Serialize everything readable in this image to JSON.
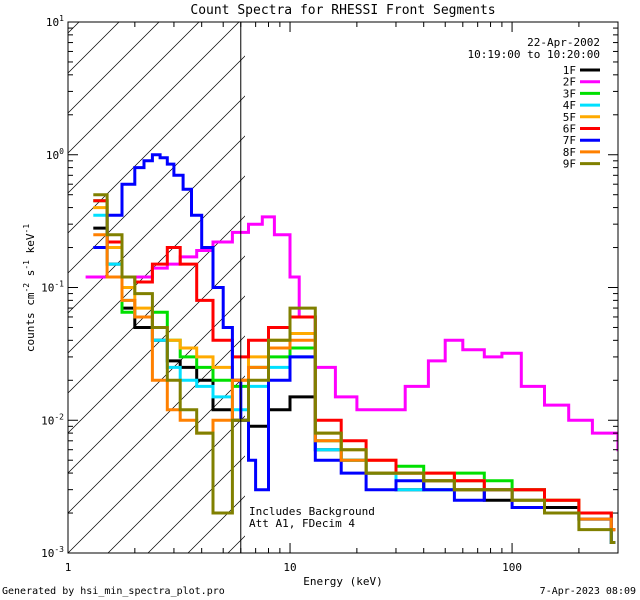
{
  "chart_data": {
    "type": "line",
    "title": "Count Spectra for RHESSI Front Segments",
    "xlabel": "Energy (keV)",
    "ylabel": "counts cm",
    "ylabel_sup1": "-2",
    "ylabel_mid": " s",
    "ylabel_sup2": "-1",
    "ylabel_end": " keV",
    "ylabel_sup3": "-1",
    "xscale": "log",
    "yscale": "log",
    "xlim": [
      1,
      300
    ],
    "ylim": [
      0.001,
      10
    ],
    "x_tick_labels": [
      {
        "value": 1,
        "label": "1"
      },
      {
        "value": 10,
        "label": "10"
      },
      {
        "value": 100,
        "label": "100"
      }
    ],
    "y_tick_labels": [
      {
        "exp": -3,
        "base": "10",
        "sup": "-3"
      },
      {
        "exp": -2,
        "base": "10",
        "sup": "-2"
      },
      {
        "exp": -1,
        "base": "10",
        "sup": "-1"
      },
      {
        "exp": 0,
        "base": "10",
        "sup": "0"
      },
      {
        "exp": 1,
        "base": "10",
        "sup": "1"
      }
    ],
    "date_label": "22-Apr-2002",
    "time_range": "10:19:00 to 10:20:00",
    "annotation_line1": "Includes Background",
    "annotation_line2": "Att A1, FDecim 4",
    "footer_left": "Generated by hsi_min_spectra_plot.pro",
    "footer_right": "7-Apr-2023 08:09",
    "attenuator_energy": 6,
    "series": [
      {
        "name": "1F",
        "color": "#000000",
        "x": [
          1.3,
          1.5,
          1.75,
          2.0,
          2.4,
          2.8,
          3.2,
          3.8,
          4.5,
          5.5,
          6.5,
          8,
          10,
          13,
          17,
          22,
          30,
          40,
          55,
          75,
          100,
          140,
          200,
          280
        ],
        "y": [
          0.28,
          0.15,
          0.07,
          0.05,
          0.04,
          0.028,
          0.025,
          0.02,
          0.012,
          0.01,
          0.009,
          0.012,
          0.015,
          0.006,
          0.005,
          0.004,
          0.003,
          0.0035,
          0.003,
          0.0025,
          0.003,
          0.0022,
          0.002,
          0.0015
        ]
      },
      {
        "name": "2F",
        "color": "#ff00ff",
        "x": [
          1.2,
          1.6,
          2.0,
          2.4,
          2.8,
          3.2,
          3.8,
          4.5,
          5.5,
          6.5,
          7.5,
          8.5,
          10,
          11,
          13,
          16,
          20,
          26,
          33,
          42,
          50,
          60,
          75,
          90,
          110,
          140,
          180,
          230,
          300
        ],
        "y": [
          0.12,
          0.12,
          0.12,
          0.14,
          0.15,
          0.17,
          0.19,
          0.22,
          0.26,
          0.3,
          0.34,
          0.25,
          0.12,
          0.06,
          0.025,
          0.015,
          0.012,
          0.012,
          0.018,
          0.028,
          0.04,
          0.034,
          0.03,
          0.032,
          0.018,
          0.013,
          0.01,
          0.008,
          0.006
        ]
      },
      {
        "name": "3F",
        "color": "#00e000",
        "x": [
          1.3,
          1.5,
          1.75,
          2.0,
          2.4,
          2.8,
          3.2,
          3.8,
          4.5,
          5.5,
          6.5,
          8,
          10,
          13,
          17,
          22,
          30,
          40,
          55,
          75,
          100,
          140,
          200,
          280
        ],
        "y": [
          0.45,
          0.2,
          0.065,
          0.06,
          0.065,
          0.04,
          0.03,
          0.025,
          0.02,
          0.018,
          0.025,
          0.03,
          0.035,
          0.007,
          0.005,
          0.004,
          0.0045,
          0.003,
          0.004,
          0.0035,
          0.003,
          0.0025,
          0.002,
          0.0012
        ]
      },
      {
        "name": "4F",
        "color": "#00e0ff",
        "x": [
          1.3,
          1.5,
          1.75,
          2.0,
          2.4,
          2.8,
          3.2,
          3.8,
          4.5,
          5.5,
          6.5,
          8,
          10,
          13,
          17,
          22,
          30,
          40,
          55,
          75,
          100,
          140,
          200,
          280
        ],
        "y": [
          0.35,
          0.15,
          0.08,
          0.06,
          0.04,
          0.025,
          0.02,
          0.018,
          0.015,
          0.012,
          0.018,
          0.025,
          0.03,
          0.006,
          0.005,
          0.004,
          0.003,
          0.003,
          0.0035,
          0.003,
          0.0025,
          0.002,
          0.0018,
          0.0012
        ]
      },
      {
        "name": "5F",
        "color": "#ffaa00",
        "x": [
          1.3,
          1.5,
          1.75,
          2.0,
          2.4,
          2.8,
          3.2,
          3.8,
          4.5,
          5.5,
          6.5,
          8,
          10,
          13,
          17,
          22,
          30,
          40,
          55,
          75,
          100,
          140,
          200,
          280
        ],
        "y": [
          0.4,
          0.2,
          0.1,
          0.07,
          0.05,
          0.04,
          0.035,
          0.03,
          0.025,
          0.02,
          0.03,
          0.04,
          0.045,
          0.008,
          0.006,
          0.005,
          0.004,
          0.004,
          0.0035,
          0.003,
          0.003,
          0.0025,
          0.002,
          0.0015
        ]
      },
      {
        "name": "6F",
        "color": "#ff0000",
        "x": [
          1.3,
          1.5,
          1.75,
          2.0,
          2.4,
          2.8,
          3.2,
          3.8,
          4.5,
          5.5,
          6.5,
          8,
          10,
          13,
          17,
          22,
          30,
          40,
          55,
          75,
          100,
          140,
          200,
          280
        ],
        "y": [
          0.45,
          0.22,
          0.12,
          0.11,
          0.15,
          0.2,
          0.15,
          0.08,
          0.04,
          0.03,
          0.04,
          0.05,
          0.06,
          0.01,
          0.007,
          0.005,
          0.004,
          0.004,
          0.0035,
          0.003,
          0.003,
          0.0025,
          0.002,
          0.0015
        ]
      },
      {
        "name": "7F",
        "color": "#0000ff",
        "x": [
          1.3,
          1.5,
          1.75,
          2.0,
          2.2,
          2.4,
          2.6,
          2.8,
          3.0,
          3.3,
          3.6,
          4.0,
          4.5,
          5.0,
          5.5,
          6.0,
          6.5,
          7.0,
          8,
          10,
          13,
          17,
          22,
          30,
          40,
          55,
          75,
          100,
          140,
          200,
          280
        ],
        "y": [
          0.2,
          0.35,
          0.6,
          0.8,
          0.9,
          1.0,
          0.95,
          0.85,
          0.7,
          0.55,
          0.35,
          0.2,
          0.1,
          0.05,
          0.02,
          0.01,
          0.005,
          0.003,
          0.02,
          0.03,
          0.005,
          0.004,
          0.003,
          0.0035,
          0.003,
          0.0025,
          0.003,
          0.0022,
          0.002,
          0.0018,
          0.0012
        ]
      },
      {
        "name": "8F",
        "color": "#ff8000",
        "x": [
          1.3,
          1.5,
          1.75,
          2.0,
          2.4,
          2.8,
          3.2,
          3.8,
          4.5,
          5.5,
          6.5,
          8,
          10,
          13,
          17,
          22,
          30,
          40,
          55,
          75,
          100,
          140,
          200,
          280
        ],
        "y": [
          0.25,
          0.12,
          0.08,
          0.06,
          0.02,
          0.012,
          0.01,
          0.008,
          0.01,
          0.02,
          0.025,
          0.035,
          0.04,
          0.007,
          0.005,
          0.004,
          0.004,
          0.0035,
          0.003,
          0.003,
          0.0025,
          0.002,
          0.0018,
          0.0015
        ]
      },
      {
        "name": "9F",
        "color": "#808000",
        "x": [
          1.3,
          1.5,
          1.75,
          2.0,
          2.4,
          2.8,
          3.2,
          3.8,
          4.5,
          5.5,
          6.5,
          8,
          10,
          13,
          17,
          22,
          30,
          40,
          55,
          75,
          100,
          140,
          200,
          280
        ],
        "y": [
          0.5,
          0.25,
          0.12,
          0.09,
          0.05,
          0.02,
          0.012,
          0.008,
          0.002,
          0.01,
          0.02,
          0.04,
          0.07,
          0.008,
          0.006,
          0.004,
          0.004,
          0.0035,
          0.003,
          0.003,
          0.0025,
          0.002,
          0.0015,
          0.0012
        ]
      }
    ]
  }
}
